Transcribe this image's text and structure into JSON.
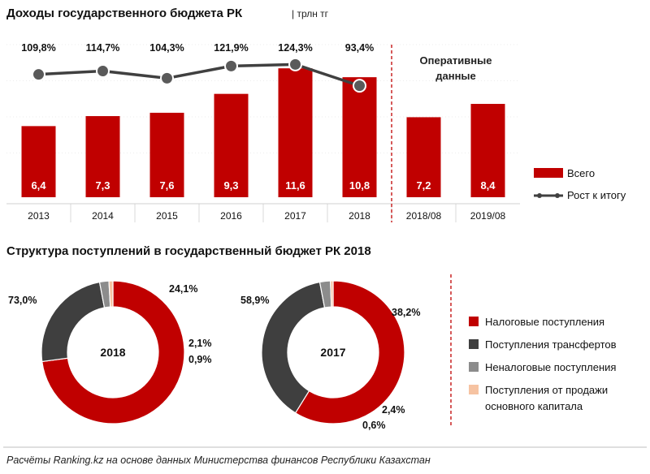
{
  "colors": {
    "red": "#c00000",
    "dark": "#3f3f3f",
    "gray": "#8c8c8c",
    "peach": "#f6c3a2",
    "line": "#404040",
    "divider": "#c00000",
    "grid": "#d9d9d9"
  },
  "chart_data": [
    {
      "type": "bar",
      "title": "Доходы государственного бюджета РК",
      "unit": "| трлн тг",
      "categories": [
        "2013",
        "2014",
        "2015",
        "2016",
        "2017",
        "2018",
        "2018/08",
        "2019/08"
      ],
      "series": [
        {
          "name": "Всего",
          "values": [
            6.4,
            7.3,
            7.6,
            9.3,
            11.6,
            10.8,
            7.2,
            8.4
          ],
          "labels": [
            "6,4",
            "7,3",
            "7,6",
            "9,3",
            "11,6",
            "10,8",
            "7,2",
            "8,4"
          ]
        }
      ],
      "line_series": {
        "name": "Рост к итогу",
        "values": [
          109.8,
          114.7,
          104.3,
          121.9,
          124.3,
          93.4
        ],
        "labels": [
          "109,8%",
          "114,7%",
          "104,3%",
          "121,9%",
          "124,3%",
          "93,4%"
        ]
      },
      "ylim": [
        0,
        13
      ],
      "operational_label": [
        "Оперативные",
        "данные"
      ],
      "legend": [
        "Всего",
        "Рост к итогу"
      ]
    },
    {
      "type": "pie",
      "title": "Структура поступлений в государственный бюджет РК 2018",
      "donuts": [
        {
          "center": "2018",
          "slices": [
            {
              "name": "Налоговые поступления",
              "value": 73.0,
              "label": "73,0%"
            },
            {
              "name": "Поступления трансфертов",
              "value": 24.1,
              "label": "24,1%"
            },
            {
              "name": "Неналоговые поступления",
              "value": 2.1,
              "label": "2,1%"
            },
            {
              "name": "Поступления от продажи основного капитала",
              "value": 0.9,
              "label": "0,9%"
            }
          ]
        },
        {
          "center": "2017",
          "slices": [
            {
              "name": "Налоговые поступления",
              "value": 58.9,
              "label": "58,9%"
            },
            {
              "name": "Поступления трансфертов",
              "value": 38.2,
              "label": "38,2%"
            },
            {
              "name": "Неналоговые поступления",
              "value": 2.4,
              "label": "2,4%"
            },
            {
              "name": "Поступления от продажи основного капитала",
              "value": 0.6,
              "label": "0,6%"
            }
          ]
        }
      ],
      "legend": [
        "Налоговые поступления",
        "Поступления трансфертов",
        "Неналоговые поступления",
        "Поступления от продажи основного капитала"
      ]
    }
  ],
  "footer": {
    "source": "Расчёты Ranking.kz на основе данных  Министерства финансов  Республики Казахстан"
  }
}
